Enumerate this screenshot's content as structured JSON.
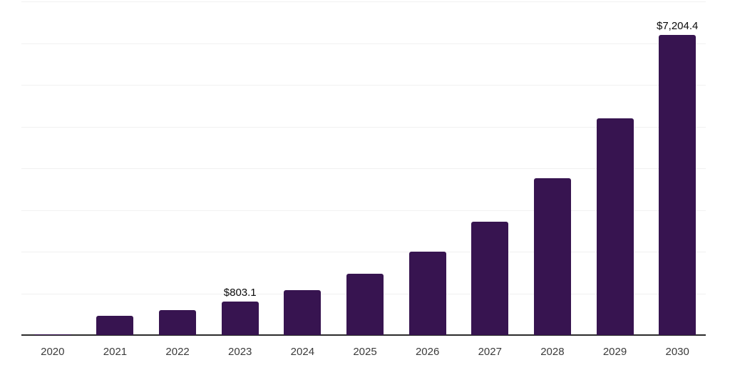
{
  "chart_data": {
    "type": "bar",
    "title": "",
    "xlabel": "",
    "ylabel": "",
    "categories": [
      "2020",
      "2021",
      "2022",
      "2023",
      "2024",
      "2025",
      "2026",
      "2027",
      "2028",
      "2029",
      "2030"
    ],
    "values": [
      25,
      460,
      595,
      803.1,
      1075,
      1465,
      1995,
      2725,
      3765,
      5195,
      7204.4
    ],
    "data_labels": {
      "2023": "$803.1",
      "2030": "$7,204.4"
    },
    "ylim": [
      0,
      8000
    ],
    "gridline_step": 1000,
    "grid": "horizontal-only",
    "legend_position": "none",
    "y_tick_labels_visible": false,
    "bar_color": "#371450",
    "gridline_color": "#f1f1f1",
    "axis_line_color": "#2b2b2b",
    "x_label_color": "#3b3b3b",
    "value_label_color": "#0a0a0a",
    "background_color": "#ffffff"
  }
}
